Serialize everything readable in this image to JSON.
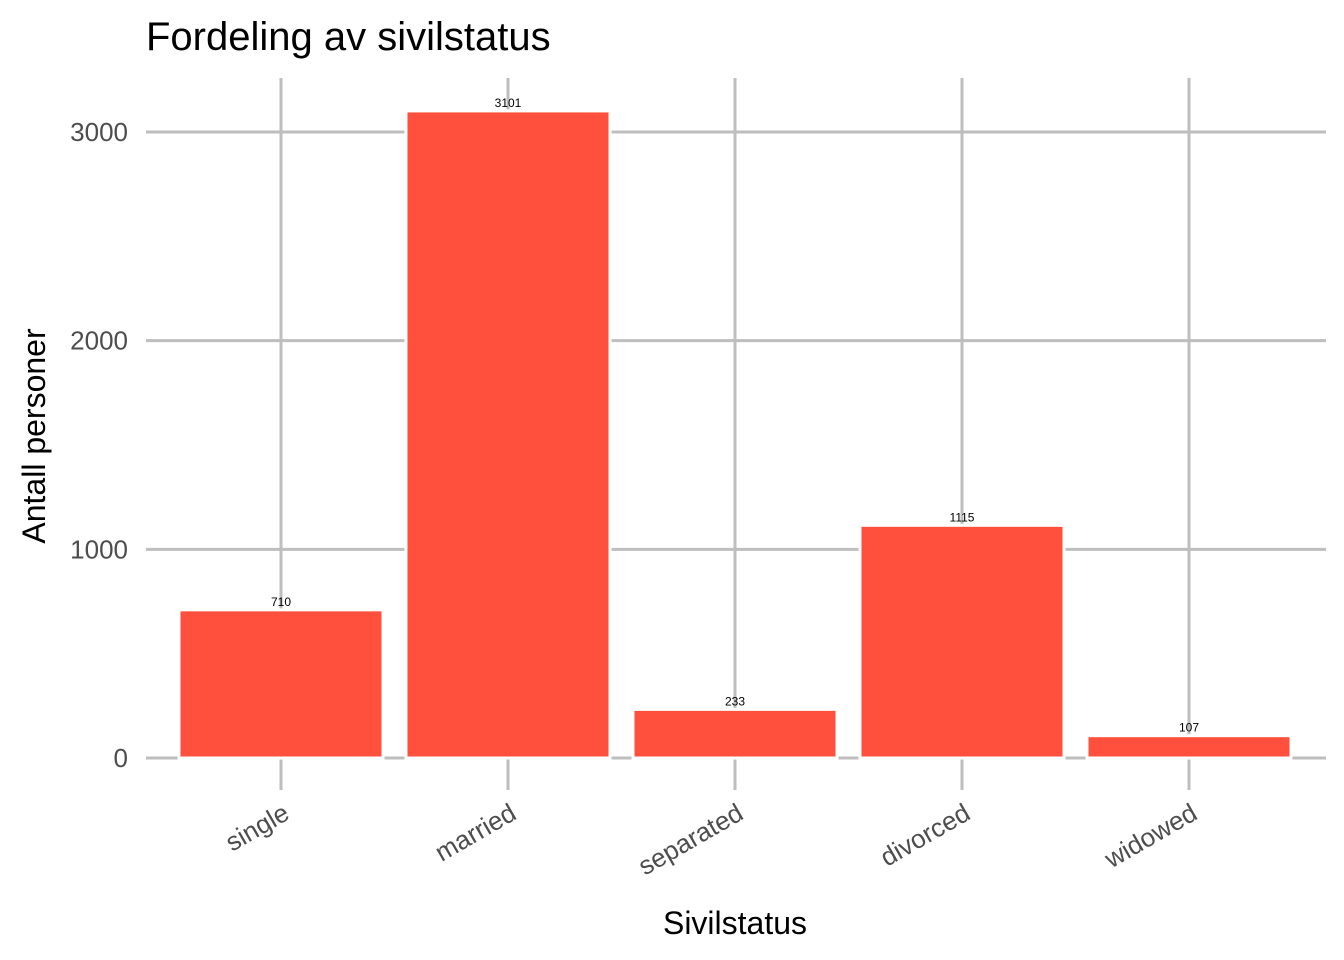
{
  "chart_data": {
    "type": "bar",
    "title": "Fordeling av sivilstatus",
    "xlabel": "Sivilstatus",
    "ylabel": "Antall personer",
    "categories": [
      "single",
      "married",
      "separated",
      "divorced",
      "widowed"
    ],
    "values": [
      710,
      3101,
      233,
      1115,
      107
    ],
    "data_labels": [
      "710",
      "3101",
      "233",
      "1115",
      "107"
    ],
    "yticks": [
      0,
      1000,
      2000,
      3000
    ],
    "ytick_labels": [
      "0",
      "1000",
      "2000",
      "3000"
    ],
    "ylim": [
      0,
      3260
    ],
    "grid": true,
    "legend": "none",
    "colors": {
      "bar_fill": "#FF4F3D",
      "bar_outline": "#ffffff",
      "grid": "#bebebe",
      "tick_text": "#4d4d4d",
      "text": "#000000"
    }
  }
}
